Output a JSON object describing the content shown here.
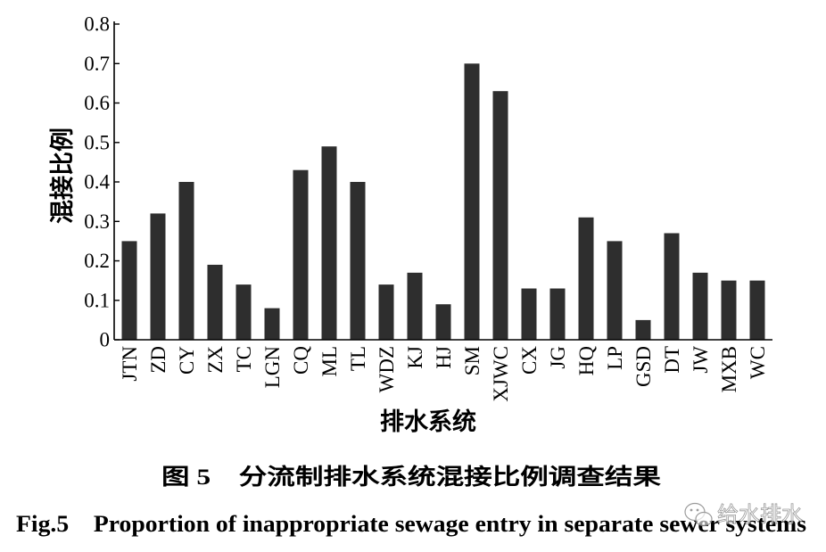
{
  "figure": {
    "caption_cn": "图 5　分流制排水系统混接比例调查结果",
    "caption_en": "Fig.5　Proportion of inappropriate sewage entry in separate sewer systems"
  },
  "watermark": {
    "text": "给水排水",
    "icon": "wechat-icon"
  },
  "colors": {
    "bar": "#2e2e2e",
    "axis": "#000000",
    "watermark": "#8a8a8a"
  },
  "chart_data": {
    "type": "bar",
    "categories": [
      "JTN",
      "ZD",
      "CY",
      "ZX",
      "TC",
      "LGN",
      "CQ",
      "ML",
      "TL",
      "WDZ",
      "KJ",
      "HJ",
      "SM",
      "XJWC",
      "CX",
      "JG",
      "HQ",
      "LP",
      "GSD",
      "DT",
      "JW",
      "MXB",
      "WC"
    ],
    "values": [
      0.25,
      0.32,
      0.4,
      0.19,
      0.14,
      0.08,
      0.43,
      0.49,
      0.4,
      0.14,
      0.17,
      0.09,
      0.7,
      0.63,
      0.13,
      0.13,
      0.31,
      0.25,
      0.05,
      0.27,
      0.17,
      0.15,
      0.15
    ],
    "xlabel": "排水系统",
    "ylabel": "混接比例",
    "ylim": [
      0,
      0.8
    ],
    "yticks": [
      0,
      0.1,
      0.2,
      0.3,
      0.4,
      0.5,
      0.6,
      0.7,
      0.8
    ],
    "ytick_labels": [
      "0",
      "0.1",
      "0.2",
      "0.3",
      "0.4",
      "0.5",
      "0.6",
      "0.7",
      "0.8"
    ],
    "grid": false
  }
}
